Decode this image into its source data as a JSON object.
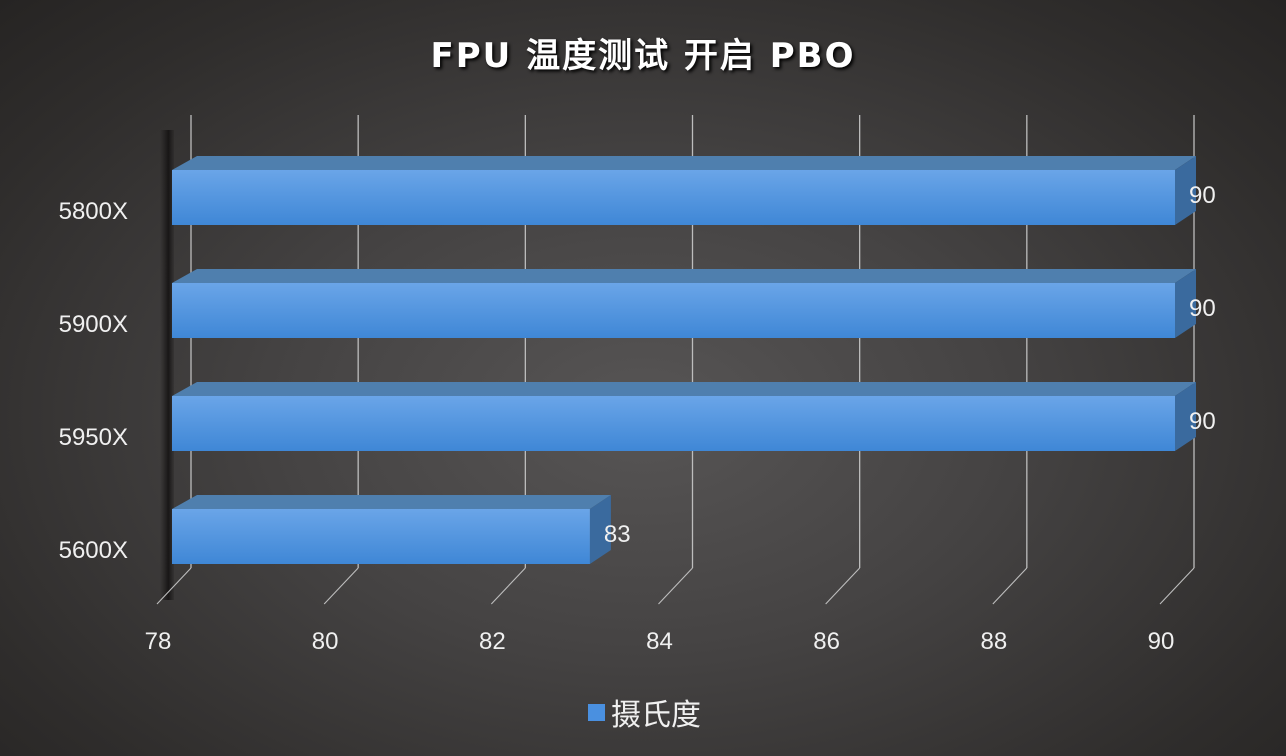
{
  "chart_data": {
    "type": "bar",
    "orientation": "horizontal",
    "style": "3d-clustered-bar",
    "title": "FPU 温度测试 开启 PBO",
    "categories": [
      "5800X",
      "5900X",
      "5950X",
      "5600X"
    ],
    "series": [
      {
        "name": "摄氏度",
        "values": [
          90,
          90,
          90,
          83
        ],
        "color": "#4a90e0"
      }
    ],
    "data_labels": [
      "90",
      "90",
      "90",
      "83"
    ],
    "xlabel": "",
    "ylabel": "",
    "xlim": [
      78,
      90
    ],
    "x_ticks": [
      "78",
      "80",
      "82",
      "84",
      "86",
      "88",
      "90"
    ],
    "grid": true,
    "legend_position": "bottom"
  },
  "colors": {
    "bar_front": "#4a90e0",
    "bar_top": "#4f7fae",
    "bar_side": "#3a6a9e",
    "background": "#3a3837",
    "gridline": "#bdbdbd",
    "text": "#f0f0f0"
  }
}
